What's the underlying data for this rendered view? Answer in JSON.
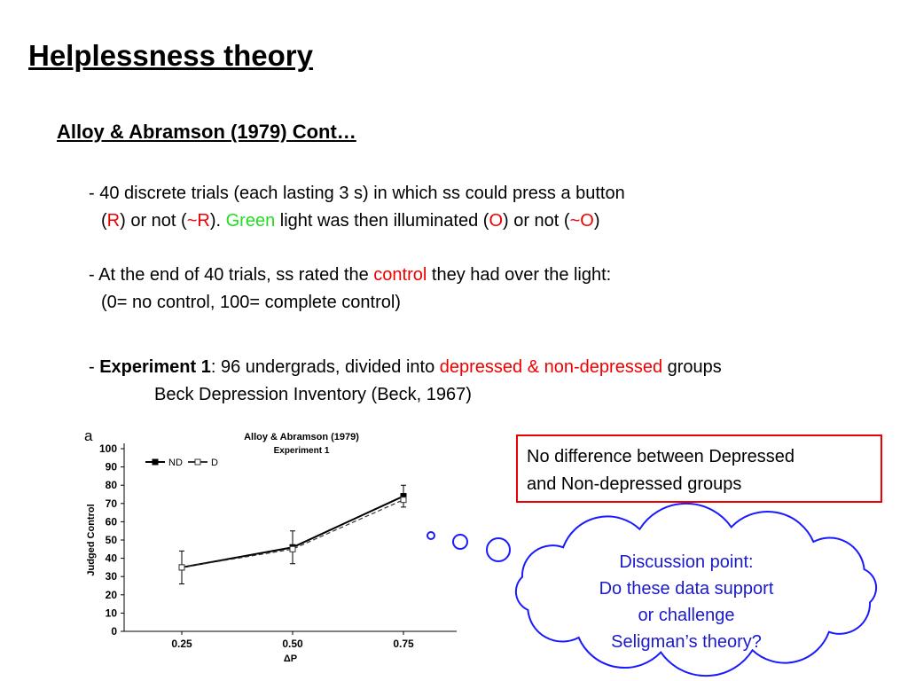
{
  "slide": {
    "title": "Helplessness theory",
    "subtitle": "Alloy & Abramson (1979) Cont…",
    "lines": [
      [
        {
          "text": "- 40 discrete trials (each lasting 3 s) in which ss could press a button"
        }
      ],
      [
        {
          "text": "("
        },
        {
          "text": "R",
          "color": "#ee0000"
        },
        {
          "text": ") or not ("
        },
        {
          "text": "~R",
          "color": "#ee0000"
        },
        {
          "text": "). "
        },
        {
          "text": "Green",
          "color": "#22dd22"
        },
        {
          "text": " light was then illuminated ("
        },
        {
          "text": "O",
          "color": "#ee0000"
        },
        {
          "text": ") or not ("
        },
        {
          "text": "~O",
          "color": "#ee0000"
        },
        {
          "text": ")"
        }
      ],
      [
        {
          "text": "- At the end of 40 trials, ss rated the "
        },
        {
          "text": "control",
          "color": "#ee0000"
        },
        {
          "text": " they had over the light:"
        }
      ],
      [
        {
          "text": "(0= no control, 100= complete control)"
        }
      ],
      [
        {
          "text": "- "
        },
        {
          "text": "Experiment 1",
          "bold": true
        },
        {
          "text": ": 96 undergrads, divided into "
        },
        {
          "text": "depressed & non-depressed",
          "color": "#ee0000"
        },
        {
          "text": " groups"
        }
      ],
      [
        {
          "text": "Beck Depression Inventory (Beck, 1967)"
        }
      ]
    ],
    "box": [
      "No difference between Depressed",
      "and Non-depressed groups"
    ],
    "cloud": [
      "Discussion point:",
      "Do these data support",
      "or challenge",
      "Seligman’s theory?"
    ]
  },
  "chart_data": {
    "type": "line",
    "panel": "a",
    "title": "Alloy & Abramson (1979)",
    "subtitle": "Experiment 1",
    "xlabel": "ΔP",
    "ylabel": "Judged Control",
    "x": [
      0.25,
      0.5,
      0.75
    ],
    "xlim": [
      0.12,
      0.87
    ],
    "xticks": [
      {
        "value": 0.25,
        "label": "0.25"
      },
      {
        "value": 0.5,
        "label": "0.50"
      },
      {
        "value": 0.75,
        "label": "0.75"
      }
    ],
    "ylim": [
      0,
      100
    ],
    "yticks": [
      0,
      10,
      20,
      30,
      40,
      50,
      60,
      70,
      80,
      90,
      100
    ],
    "legend": "upper left",
    "series": [
      {
        "name": "ND",
        "color": "#000000",
        "values": [
          35,
          46,
          74
        ],
        "error": [
          9,
          9,
          6
        ]
      },
      {
        "name": "D",
        "color": "#333333",
        "values": [
          35,
          45,
          72
        ]
      }
    ]
  }
}
